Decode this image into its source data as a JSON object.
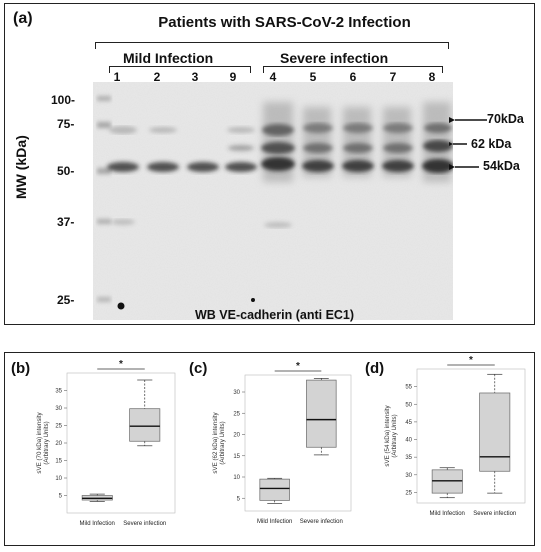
{
  "panel_a": {
    "letter": "(a)",
    "title": "Patients with SARS-CoV-2  Infection",
    "groups": [
      {
        "label": "Mild Infection",
        "lanes": [
          "1",
          "2",
          "3",
          "9"
        ]
      },
      {
        "label": "Severe infection",
        "lanes": [
          "4",
          "5",
          "6",
          "7",
          "8"
        ]
      }
    ],
    "mw_axis_label": "MW (kDa)",
    "mw_ticks": [
      "100-",
      "75-",
      "50-",
      "37-",
      "25-"
    ],
    "band_labels": [
      "70kDa",
      "62 kDa",
      "54kDa"
    ],
    "caption": "WB VE-cadherin (anti EC1)"
  },
  "chart_data": [
    {
      "type": "box",
      "panel": "(b)",
      "ylabel": "sVE (70 kDa)  intensity (Arbitrary Units)",
      "categories": [
        "Mild Infection",
        "Severe infection"
      ],
      "ylim": [
        0,
        40
      ],
      "yticks": [
        5,
        10,
        15,
        20,
        25,
        30,
        35
      ],
      "boxes": [
        {
          "min": 3.3,
          "q1": 3.7,
          "median": 4.2,
          "q3": 5.0,
          "max": 5.4
        },
        {
          "min": 19.2,
          "q1": 20.5,
          "median": 24.8,
          "q3": 29.8,
          "max": 38.0
        }
      ],
      "significance": "*"
    },
    {
      "type": "box",
      "panel": "(c)",
      "ylabel": "sVE (62 kDa)  intensity (Arbitrary Units)",
      "categories": [
        "Mild Infection",
        "Severe  infection"
      ],
      "ylim": [
        2,
        34
      ],
      "yticks": [
        5,
        10,
        15,
        20,
        25,
        30
      ],
      "boxes": [
        {
          "min": 3.8,
          "q1": 4.5,
          "median": 7.3,
          "q3": 9.5,
          "max": 9.7
        },
        {
          "min": 15.2,
          "q1": 17.0,
          "median": 23.5,
          "q3": 32.8,
          "max": 33.2
        }
      ],
      "significance": "*"
    },
    {
      "type": "box",
      "panel": "(d)",
      "ylabel": "sVE (54 kDa)  intensity (Arbitrary Units)",
      "categories": [
        "Mild Infection",
        "Severe infection"
      ],
      "ylim": [
        22,
        60
      ],
      "yticks": [
        25,
        30,
        35,
        40,
        45,
        50,
        55
      ],
      "boxes": [
        {
          "min": 23.5,
          "q1": 24.8,
          "median": 28.3,
          "q3": 31.4,
          "max": 32.0
        },
        {
          "min": 24.8,
          "q1": 31.0,
          "median": 35.1,
          "q3": 53.2,
          "max": 58.5
        }
      ],
      "significance": "*"
    }
  ]
}
